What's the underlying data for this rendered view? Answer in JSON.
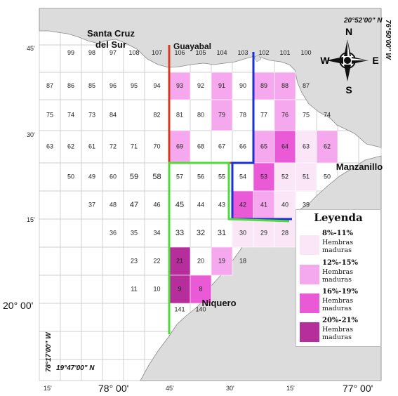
{
  "colors": {
    "sea": "#ffffff",
    "land": "#dcdcdc",
    "land_edge": "#8a8a8a",
    "grid": "#bfbfbf",
    "class_8_11": "#fbe6f8",
    "class_12_15": "#f6a8ee",
    "class_16_19": "#ea5ad6",
    "class_20_21": "#b52e9c",
    "line_red": "#d83a22",
    "line_blue": "#1a2fd6",
    "line_green": "#4fdc3a"
  },
  "places": {
    "santa_cruz_1": "Santa Cruz",
    "santa_cruz_2": "del Sur",
    "guayabal": "Guayabal",
    "manzanillo": "Manzanillo",
    "niquero": "Niquero"
  },
  "coords": {
    "top_lat": "20°52'00\" N",
    "right_lon": "76°50'00\" W",
    "left_lon": "78°17'00\" W",
    "bottom_lat": "19°47'00\" N"
  },
  "lat_ticks": [
    "45'",
    "30'",
    "15'",
    "20° 00'"
  ],
  "lon_ticks": [
    "15'",
    "78° 00'",
    "45'",
    "30'",
    "15'",
    "77° 00'"
  ],
  "compass": {
    "n": "N",
    "s": "S",
    "e": "E",
    "w": "W"
  },
  "cells": [
    {
      "id": "99",
      "class": "none"
    },
    {
      "id": "98",
      "class": "none"
    },
    {
      "id": "97",
      "class": "none"
    },
    {
      "id": "108",
      "class": "none"
    },
    {
      "id": "107",
      "class": "none"
    },
    {
      "id": "106",
      "class": "none"
    },
    {
      "id": "105",
      "class": "none"
    },
    {
      "id": "104",
      "class": "none"
    },
    {
      "id": "103",
      "class": "none"
    },
    {
      "id": "102",
      "class": "none"
    },
    {
      "id": "101",
      "class": "none"
    },
    {
      "id": "100",
      "class": "none"
    },
    {
      "id": "87",
      "class": "none"
    },
    {
      "id": "86",
      "class": "none"
    },
    {
      "id": "85",
      "class": "none"
    },
    {
      "id": "96",
      "class": "none"
    },
    {
      "id": "95",
      "class": "none"
    },
    {
      "id": "94",
      "class": "none"
    },
    {
      "id": "93",
      "class": "12-15"
    },
    {
      "id": "92",
      "class": "none"
    },
    {
      "id": "91",
      "class": "12-15"
    },
    {
      "id": "90",
      "class": "none"
    },
    {
      "id": "89",
      "class": "12-15"
    },
    {
      "id": "88",
      "class": "12-15"
    },
    {
      "id": "87",
      "class": "none"
    },
    {
      "id": "75",
      "class": "none"
    },
    {
      "id": "74",
      "class": "none"
    },
    {
      "id": "73",
      "class": "none"
    },
    {
      "id": "84",
      "class": "none"
    },
    {
      "id": "82",
      "class": "none"
    },
    {
      "id": "81",
      "class": "none"
    },
    {
      "id": "80",
      "class": "none"
    },
    {
      "id": "79",
      "class": "12-15"
    },
    {
      "id": "78",
      "class": "none"
    },
    {
      "id": "77",
      "class": "none"
    },
    {
      "id": "76",
      "class": "12-15"
    },
    {
      "id": "75",
      "class": "none"
    },
    {
      "id": "74",
      "class": "none"
    },
    {
      "id": "63",
      "class": "none"
    },
    {
      "id": "62",
      "class": "none"
    },
    {
      "id": "61",
      "class": "none"
    },
    {
      "id": "72",
      "class": "none"
    },
    {
      "id": "71",
      "class": "none"
    },
    {
      "id": "70",
      "class": "none"
    },
    {
      "id": "69",
      "class": "12-15"
    },
    {
      "id": "68",
      "class": "none"
    },
    {
      "id": "67",
      "class": "none"
    },
    {
      "id": "66",
      "class": "none"
    },
    {
      "id": "65",
      "class": "12-15"
    },
    {
      "id": "64",
      "class": "16-19"
    },
    {
      "id": "63",
      "class": "8-11"
    },
    {
      "id": "62",
      "class": "12-15"
    },
    {
      "id": "50",
      "class": "none"
    },
    {
      "id": "49",
      "class": "none"
    },
    {
      "id": "60",
      "class": "none"
    },
    {
      "id": "59",
      "class": "none"
    },
    {
      "id": "58",
      "class": "none"
    },
    {
      "id": "57",
      "class": "none"
    },
    {
      "id": "56",
      "class": "none"
    },
    {
      "id": "55",
      "class": "none"
    },
    {
      "id": "54",
      "class": "none"
    },
    {
      "id": "53",
      "class": "16-19"
    },
    {
      "id": "52",
      "class": "8-11"
    },
    {
      "id": "51",
      "class": "8-11"
    },
    {
      "id": "50",
      "class": "none"
    },
    {
      "id": "37",
      "class": "none"
    },
    {
      "id": "48",
      "class": "none"
    },
    {
      "id": "47",
      "class": "none"
    },
    {
      "id": "46",
      "class": "none"
    },
    {
      "id": "45",
      "class": "none"
    },
    {
      "id": "44",
      "class": "none"
    },
    {
      "id": "43",
      "class": "none"
    },
    {
      "id": "42",
      "class": "16-19"
    },
    {
      "id": "41",
      "class": "12-15"
    },
    {
      "id": "40",
      "class": "8-11"
    },
    {
      "id": "39",
      "class": "none"
    },
    {
      "id": "36",
      "class": "none"
    },
    {
      "id": "35",
      "class": "none"
    },
    {
      "id": "34",
      "class": "none"
    },
    {
      "id": "33",
      "class": "none"
    },
    {
      "id": "32",
      "class": "none"
    },
    {
      "id": "31",
      "class": "none"
    },
    {
      "id": "30",
      "class": "8-11"
    },
    {
      "id": "29",
      "class": "8-11"
    },
    {
      "id": "28",
      "class": "8-11"
    },
    {
      "id": "23",
      "class": "none"
    },
    {
      "id": "22",
      "class": "none"
    },
    {
      "id": "21",
      "class": "20-21"
    },
    {
      "id": "20",
      "class": "none"
    },
    {
      "id": "19",
      "class": "12-15"
    },
    {
      "id": "18",
      "class": "none"
    },
    {
      "id": "11",
      "class": "none"
    },
    {
      "id": "10",
      "class": "none"
    },
    {
      "id": "9",
      "class": "20-21"
    },
    {
      "id": "8",
      "class": "16-19"
    },
    {
      "id": "141",
      "class": "none"
    },
    {
      "id": "140",
      "class": "none"
    }
  ],
  "legend": {
    "title": "Leyenda",
    "items": [
      {
        "range": "8%-11%",
        "label": "Hembras maduras",
        "class": "8-11"
      },
      {
        "range": "12%-15%",
        "label": "Hembras maduras",
        "class": "12-15"
      },
      {
        "range": "16%-19%",
        "label": "Hembras maduras",
        "class": "16-19"
      },
      {
        "range": "20%-21%",
        "label": "Hembras maduras",
        "class": "20-21"
      }
    ]
  }
}
